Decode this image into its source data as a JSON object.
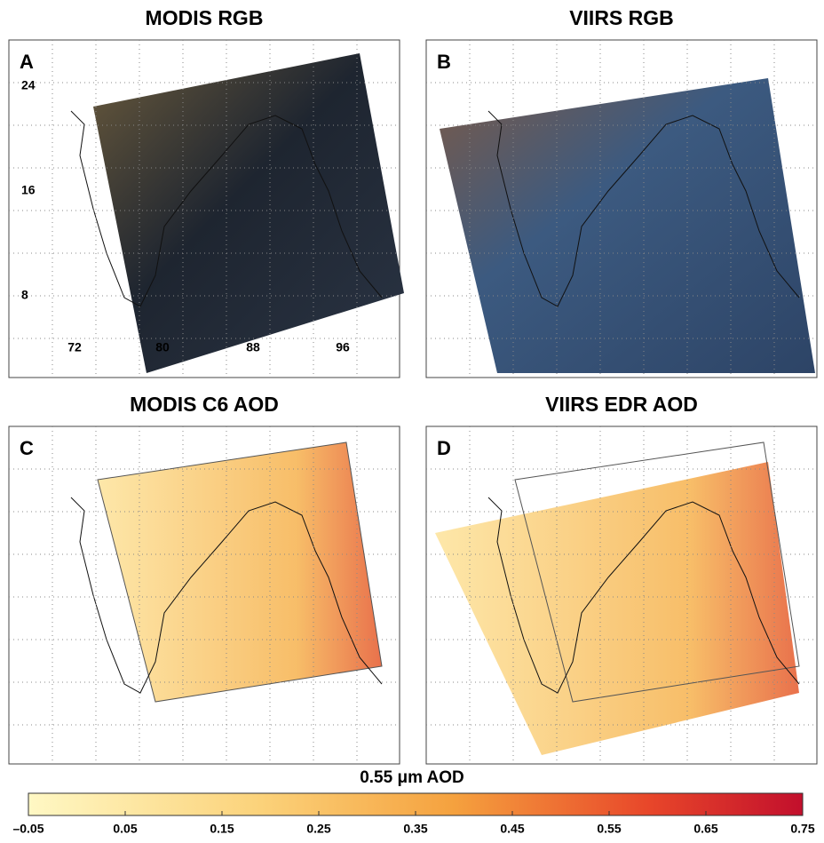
{
  "panels": [
    {
      "title": "MODIS RGB",
      "letter": "A"
    },
    {
      "title": "VIIRS RGB",
      "letter": "B"
    },
    {
      "title": "MODIS C6 AOD",
      "letter": "C"
    },
    {
      "title": "VIIRS EDR AOD",
      "letter": "D"
    }
  ],
  "lat_labels": [
    "24",
    "16",
    "8"
  ],
  "lon_labels": [
    "72",
    "80",
    "88",
    "96"
  ],
  "colorbar": {
    "label": "0.55 μm AOD",
    "ticks": [
      "–0.05",
      "0.05",
      "0.15",
      "0.25",
      "0.35",
      "0.45",
      "0.55",
      "0.65",
      "0.75"
    ]
  }
}
